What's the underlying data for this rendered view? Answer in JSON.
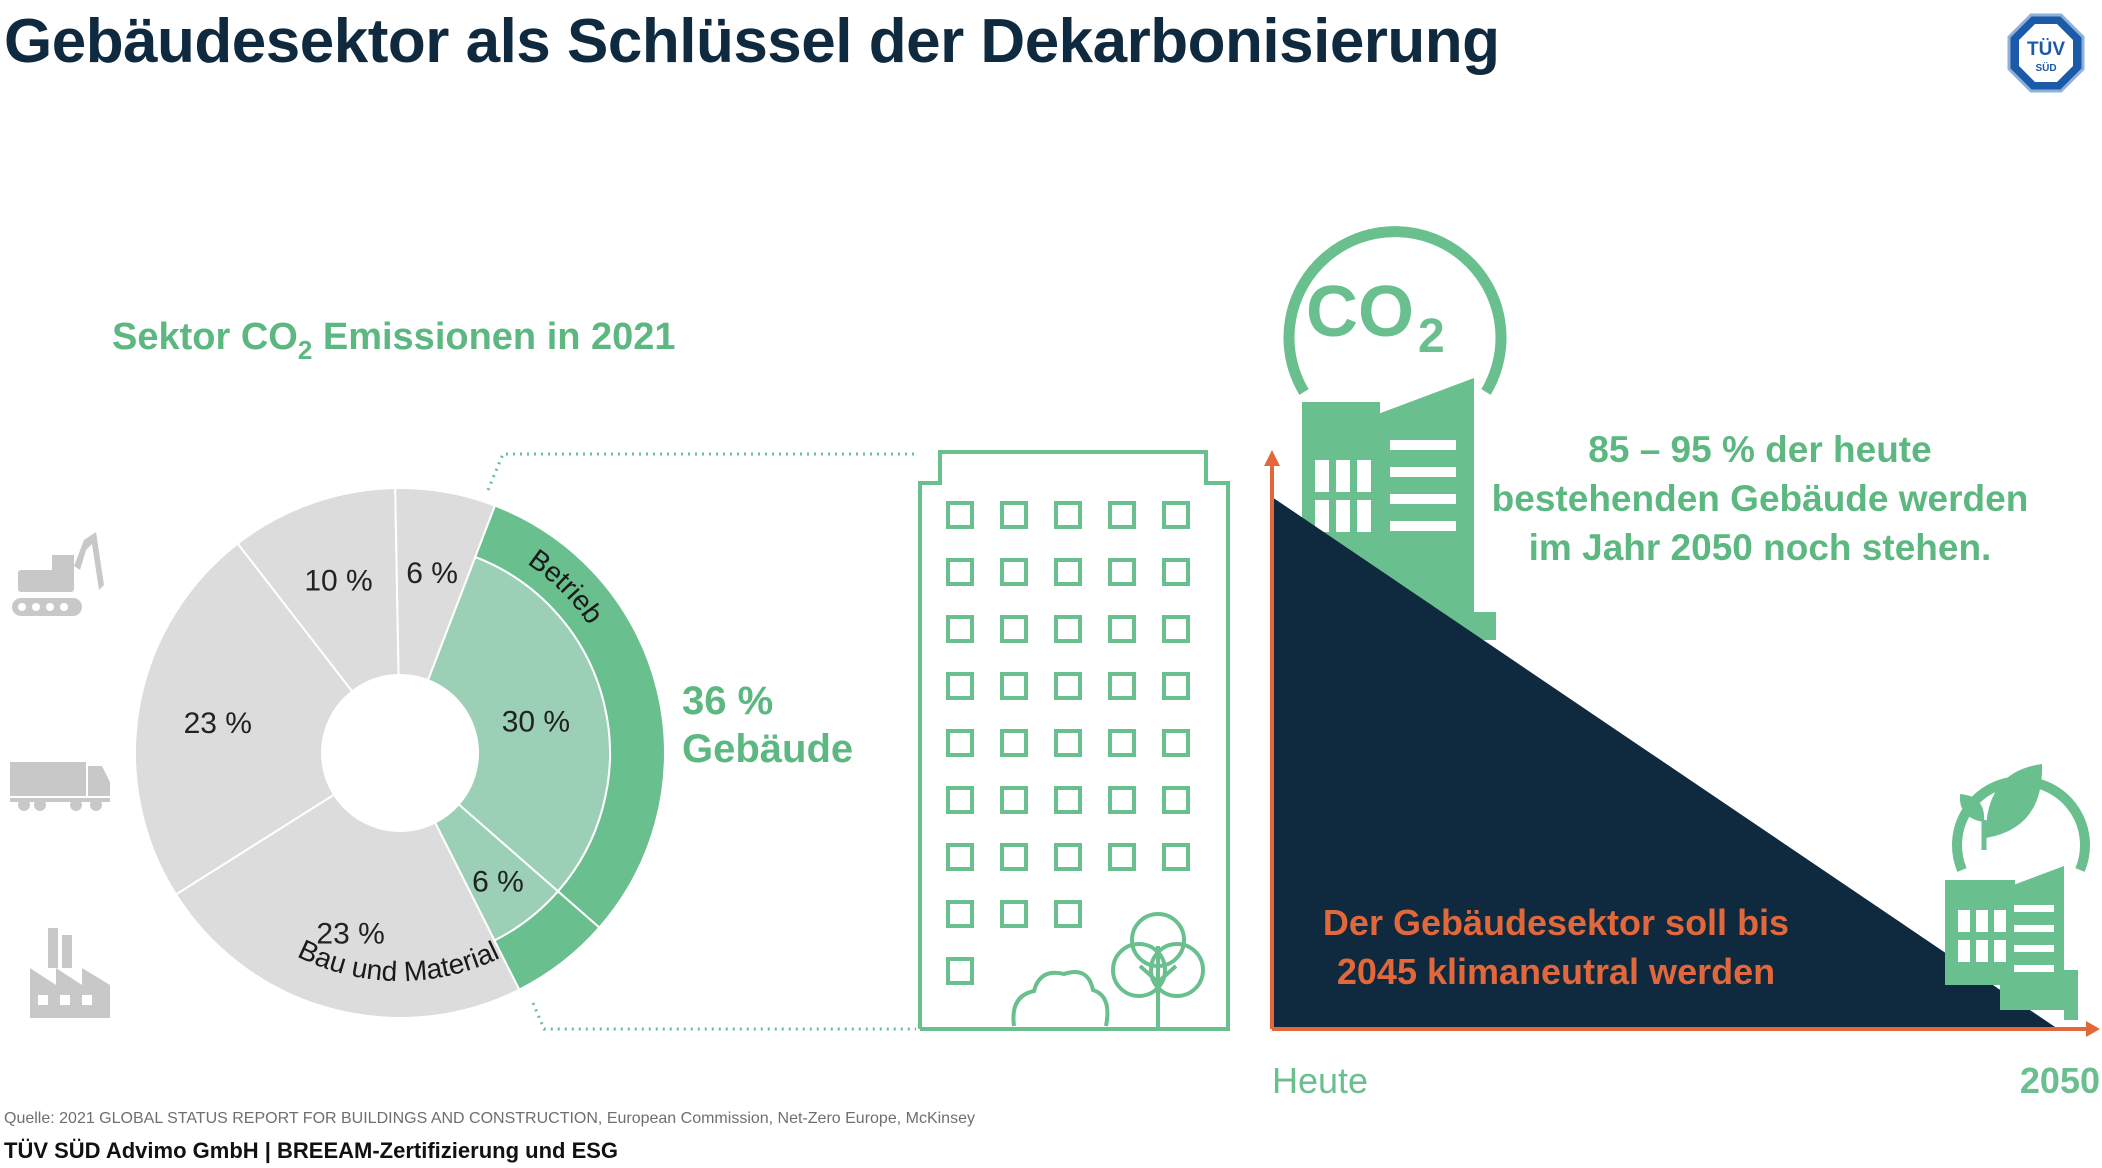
{
  "title": "Gebäudesektor als Schlüssel der Dekarbonisierung",
  "logo": {
    "line1": "TÜV",
    "line2": "SÜD"
  },
  "pie": {
    "heading_prefix": "Sektor CO",
    "heading_sub": "2",
    "heading_suffix": " Emissionen in 2021",
    "outer_label_top": "Betrieb",
    "outer_label_bottom": "Bau und Material",
    "total_pct": "36 %",
    "total_label": "Gebäude"
  },
  "chart_data": {
    "type": "pie",
    "slices": [
      {
        "label": "30 %",
        "value": 30,
        "color": "#9bd0b6"
      },
      {
        "label": "6 %",
        "value": 6,
        "color": "#9bd0b6"
      },
      {
        "label": "23 %",
        "value": 23,
        "color": "#dcdcdc"
      },
      {
        "label": "23 %",
        "value": 23,
        "color": "#dcdcdc"
      },
      {
        "label": "10 %",
        "value": 10,
        "color": "#dcdcdc"
      },
      {
        "label": "6 %",
        "value": 6,
        "color": "#dcdcdc"
      }
    ],
    "outer_ring": [
      {
        "label": "Betrieb",
        "value": 30,
        "color": "#6abf8e"
      },
      {
        "label": "Bau und Material",
        "value": 6,
        "color": "#6abf8e"
      }
    ]
  },
  "co2": {
    "main": "CO",
    "sub": "2"
  },
  "right": {
    "stat_line1": "85 – 95 % der heute",
    "stat_line2": "bestehenden Gebäude werden",
    "stat_line3": "im Jahr 2050 noch stehen.",
    "goal_line1": "Der Gebäudesektor soll bis",
    "goal_line2": "2045 klimaneutral werden",
    "x_start": "Heute",
    "x_end": "2050"
  },
  "source": "Quelle: 2021 GLOBAL STATUS REPORT FOR BUILDINGS AND CONSTRUCTION, European Commission, Net-Zero Europe, McKinsey",
  "footer": "TÜV SÜD Advimo GmbH | BREEAM-Zertifizierung und ESG",
  "colors": {
    "green": "#6abf8e",
    "light_green": "#9bd0b6",
    "gray": "#dcdcdc",
    "navy": "#0f2a3f",
    "orange": "#e2683c",
    "heading_green": "#5cb880"
  },
  "icons": [
    "excavator-icon",
    "truck-icon",
    "factory-icon",
    "co2-cloud-icon",
    "leaf-icon",
    "building-icon",
    "tree-icon"
  ]
}
